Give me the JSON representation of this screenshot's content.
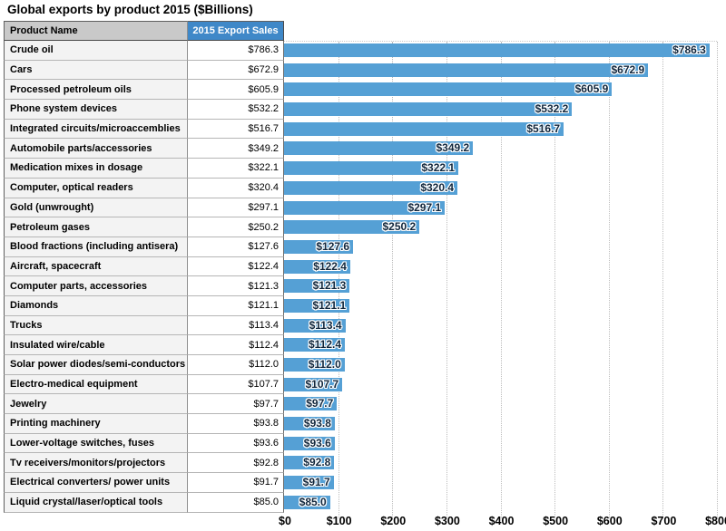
{
  "title": "Global exports by product 2015 ($Billions)",
  "table": {
    "product_header": "Product Name",
    "sales_header": "2015 Export Sales"
  },
  "colors": {
    "bar": "#55a0d5",
    "sales_header_bg": "#3f88c8",
    "product_header_bg": "#c9c9c9",
    "product_row_bg": "#f3f3f3",
    "bar_label_text": "#10263c",
    "gridline": "#bdbdbd"
  },
  "chart_data": {
    "type": "bar",
    "orientation": "horizontal",
    "title": "Global exports by product 2015 ($Billions)",
    "xlabel": "",
    "ylabel": "Product Name",
    "xlim": [
      0,
      800
    ],
    "x_ticks": [
      0,
      100,
      200,
      300,
      400,
      500,
      600,
      700,
      800
    ],
    "x_tick_labels": [
      "$0",
      "$100",
      "$200",
      "$300",
      "$400",
      "$500",
      "$600",
      "$700",
      "$800"
    ],
    "grid": "vertical-dotted",
    "legend": false,
    "categories": [
      "Crude oil",
      "Cars",
      "Processed petroleum oils",
      "Phone system devices",
      "Integrated circuits/microaccemblies",
      "Automobile parts/accessories",
      "Medication mixes in dosage",
      "Computer, optical readers",
      "Gold (unwrought)",
      "Petroleum gases",
      "Blood fractions (including antisera)",
      "Aircraft, spacecraft",
      "Computer parts, accessories",
      "Diamonds",
      "Trucks",
      "Insulated wire/cable",
      "Solar power diodes/semi-conductors",
      "Electro-medical equipment",
      "Jewelry",
      "Printing machinery",
      "Lower-voltage switches, fuses",
      "Tv receivers/monitors/projectors",
      "Electrical converters/ power units",
      "Liquid crystal/laser/optical tools"
    ],
    "values": [
      786.3,
      672.9,
      605.9,
      532.2,
      516.7,
      349.2,
      322.1,
      320.4,
      297.1,
      250.2,
      127.6,
      122.4,
      121.3,
      121.1,
      113.4,
      112.4,
      112.0,
      107.7,
      97.7,
      93.8,
      93.6,
      92.8,
      91.7,
      85.0
    ],
    "value_labels": [
      "$786.3",
      "$672.9",
      "$605.9",
      "$532.2",
      "$516.7",
      "$349.2",
      "$322.1",
      "$320.4",
      "$297.1",
      "$250.2",
      "$127.6",
      "$122.4",
      "$121.3",
      "$121.1",
      "$113.4",
      "$112.4",
      "$112.0",
      "$107.7",
      "$97.7",
      "$93.8",
      "$93.6",
      "$92.8",
      "$91.7",
      "$85.0"
    ]
  }
}
